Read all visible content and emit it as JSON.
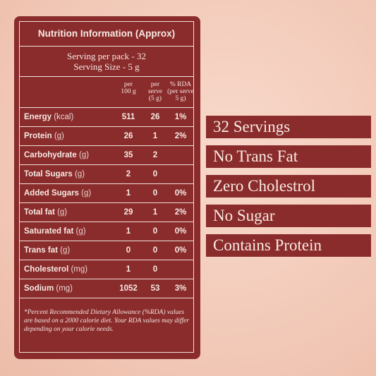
{
  "panel": {
    "title": "Nutrition Information (Approx)",
    "serving_per_pack": "Serving per pack - 32",
    "serving_size": "Serving Size - 5 g",
    "headers": {
      "per100_line1": "per",
      "per100_line2": "100 g",
      "serve_line1": "per",
      "serve_line2": "serve",
      "serve_line3": "(5 g)",
      "rda_line1": "% RDA",
      "rda_line2": "(per serve",
      "rda_line3": "5 g)"
    },
    "rows": [
      {
        "name": "Energy",
        "unit": "(kcal)",
        "per100": "511",
        "serve": "26",
        "rda": "1%"
      },
      {
        "name": "Protein",
        "unit": "(g)",
        "per100": "26",
        "serve": "1",
        "rda": "2%"
      },
      {
        "name": "Carbohydrate",
        "unit": "(g)",
        "per100": "35",
        "serve": "2",
        "rda": ""
      },
      {
        "name": "Total Sugars",
        "unit": "(g)",
        "per100": "2",
        "serve": "0",
        "rda": ""
      },
      {
        "name": "Added Sugars",
        "unit": "(g)",
        "per100": "1",
        "serve": "0",
        "rda": "0%"
      },
      {
        "name": "Total fat",
        "unit": "(g)",
        "per100": "29",
        "serve": "1",
        "rda": "2%"
      },
      {
        "name": "Saturated fat",
        "unit": "(g)",
        "per100": "1",
        "serve": "0",
        "rda": "0%"
      },
      {
        "name": "Trans fat",
        "unit": "(g)",
        "per100": "0",
        "serve": "0",
        "rda": "0%"
      },
      {
        "name": "Cholesterol",
        "unit": "(mg)",
        "per100": "1",
        "serve": "0",
        "rda": ""
      },
      {
        "name": "Sodium",
        "unit": "(mg)",
        "per100": "1052",
        "serve": "53",
        "rda": "3%"
      }
    ],
    "footnote": "*Percent Recommended Dietary Allowance (%RDA) values are based on a 2000 calorie diet. Your RDA values may differ depending on your calorie needs."
  },
  "badges": [
    "32 Servings",
    "No Trans Fat",
    "Zero Cholestrol",
    "No Sugar",
    "Contains Protein"
  ],
  "colors": {
    "panel": "#8a2b2c",
    "background": "#f1c6b4",
    "text": "#f6eae2"
  }
}
